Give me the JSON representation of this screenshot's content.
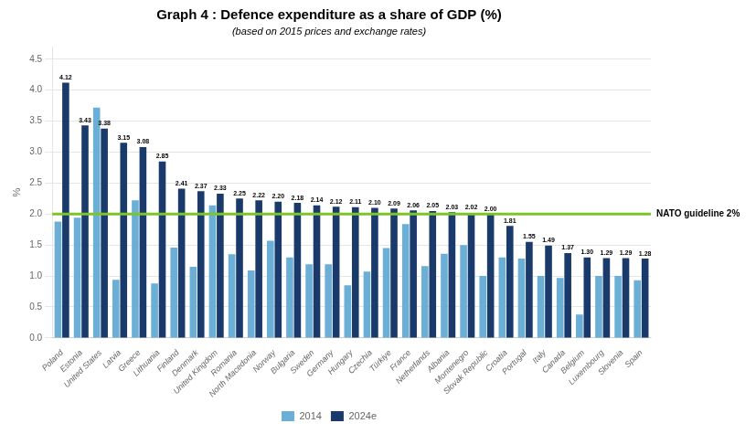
{
  "chart_data": {
    "type": "bar",
    "title": "Graph 4 : Defence expenditure as a share of GDP (%)",
    "subtitle": "(based on 2015 prices and exchange rates)",
    "ylabel": "%",
    "categories": [
      "Poland",
      "Estonia",
      "United States",
      "Latvia",
      "Greece",
      "Lithuania",
      "Finland",
      "Denmark",
      "United Kingdom",
      "Romania",
      "North Macedonia",
      "Norway",
      "Bulgaria",
      "Sweden",
      "Germany",
      "Hungary",
      "Czechia",
      "Türkiye",
      "France",
      "Netherlands",
      "Albania",
      "Montenegro",
      "Slovak Republic",
      "Croatia",
      "Portugal",
      "Italy",
      "Canada",
      "Belgium",
      "Luxembourg",
      "Slovenia",
      "Spain"
    ],
    "series": [
      {
        "name": "2014",
        "color": "#6baed6",
        "values": [
          1.88,
          1.94,
          3.72,
          0.94,
          2.22,
          0.88,
          1.46,
          1.15,
          2.14,
          1.35,
          1.09,
          1.57,
          1.3,
          1.19,
          1.19,
          0.85,
          1.07,
          1.45,
          1.84,
          1.16,
          1.36,
          1.5,
          1.0,
          1.3,
          1.28,
          1.0,
          0.97,
          0.38,
          1.0,
          1.0,
          0.93
        ]
      },
      {
        "name": "2024e",
        "color": "#1a3a6b",
        "values": [
          4.12,
          3.43,
          3.38,
          3.15,
          3.08,
          2.85,
          2.41,
          2.37,
          2.33,
          2.25,
          2.22,
          2.2,
          2.18,
          2.14,
          2.12,
          2.11,
          2.1,
          2.09,
          2.06,
          2.05,
          2.03,
          2.02,
          2.0,
          1.81,
          1.55,
          1.49,
          1.37,
          1.3,
          1.29,
          1.29,
          1.28
        ],
        "data_labels": true,
        "value_labels": [
          "4.12",
          "3.43",
          "3.38",
          "3.15",
          "3.08",
          "2.85",
          "2.41",
          "2.37",
          "2.33",
          "2.25",
          "2.22",
          "2.20",
          "2.18",
          "2.14",
          "2.12",
          "2.11",
          "2.10",
          "2.09",
          "2.06",
          "2.05",
          "2.03",
          "2.02",
          "2.00",
          "1.81",
          "1.55",
          "1.49",
          "1.37",
          "1.30",
          "1.29",
          "1.29",
          "1.28"
        ]
      }
    ],
    "ylim": [
      0,
      4.7
    ],
    "yticks": [
      {
        "value": 0.0,
        "label": "0.0"
      },
      0.5,
      {
        "value": 1.0,
        "label": "1.0"
      },
      1.5,
      {
        "value": 2.0,
        "label": "2.0"
      },
      2.5,
      {
        "value": 3.0,
        "label": "3.0"
      },
      3.5,
      {
        "value": 4.0,
        "label": "4.0"
      },
      4.5
    ],
    "grid": true,
    "legend": "bottom",
    "annotations": [
      {
        "y": 2.0,
        "text": "NATO guideline 2%",
        "color": "#7dc42a"
      }
    ]
  }
}
